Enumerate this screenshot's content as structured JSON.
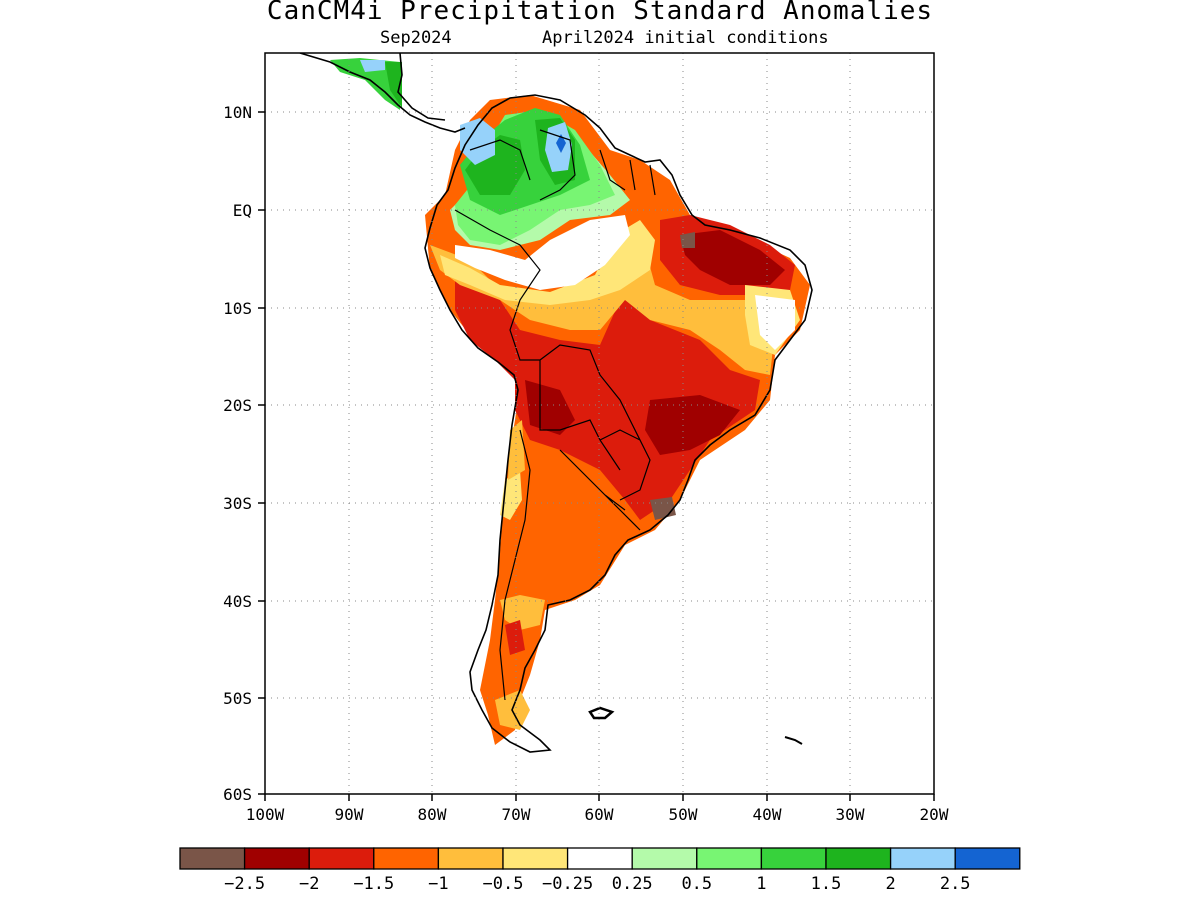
{
  "title": "CanCM4i Precipitation Standard Anomalies",
  "subtitle": {
    "valid": "Sep2024",
    "init": "April2024 initial conditions"
  },
  "map": {
    "lon_range": [
      -100,
      -20
    ],
    "lat_range": [
      -60,
      15
    ],
    "lon_ticks": [
      "100W",
      "90W",
      "80W",
      "70W",
      "60W",
      "50W",
      "40W",
      "30W",
      "20W"
    ],
    "lat_ticks": [
      "10N",
      "EQ",
      "10S",
      "20S",
      "30S",
      "40S",
      "50S",
      "60S"
    ],
    "gridlines": "dotted"
  },
  "colorbar": {
    "colors": [
      "#7a5548",
      "#a00000",
      "#dc1c0c",
      "#ff6400",
      "#ffbe3c",
      "#ffe678",
      "#ffffff",
      "#b4faaa",
      "#78f573",
      "#37d23c",
      "#1eb41e",
      "#96d2fa",
      "#1464d2"
    ],
    "labels": [
      "-2.5",
      "-2",
      "-1.5",
      "-1",
      "-0.5",
      "-0.25",
      "0.25",
      "0.5",
      "1",
      "1.5",
      "2",
      "2.5"
    ]
  },
  "legend_colors": {
    "brown": "#7a5548",
    "darkred": "#a00000",
    "red": "#dc1c0c",
    "orange": "#ff6400",
    "lightorange": "#ffbe3c",
    "yellow": "#ffe678",
    "white": "#ffffff",
    "palegreen": "#b4faaa",
    "lightgreen": "#78f573",
    "green": "#37d23c",
    "darkgreen": "#1eb41e",
    "lightblue": "#96d2fa",
    "blue": "#1464d2"
  }
}
